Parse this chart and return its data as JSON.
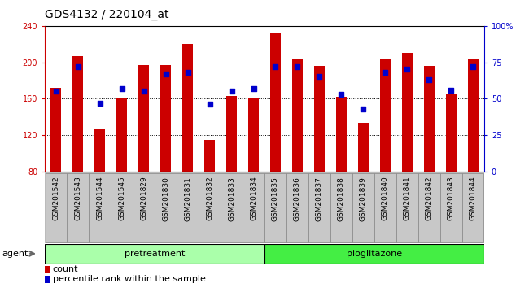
{
  "title": "GDS4132 / 220104_at",
  "samples": [
    "GSM201542",
    "GSM201543",
    "GSM201544",
    "GSM201545",
    "GSM201829",
    "GSM201830",
    "GSM201831",
    "GSM201832",
    "GSM201833",
    "GSM201834",
    "GSM201835",
    "GSM201836",
    "GSM201837",
    "GSM201838",
    "GSM201839",
    "GSM201840",
    "GSM201841",
    "GSM201842",
    "GSM201843",
    "GSM201844"
  ],
  "counts": [
    172,
    207,
    126,
    160,
    197,
    197,
    220,
    115,
    163,
    160,
    233,
    204,
    196,
    162,
    133,
    204,
    210,
    196,
    165,
    204
  ],
  "percentiles": [
    55,
    72,
    47,
    57,
    55,
    67,
    68,
    46,
    55,
    57,
    72,
    72,
    65,
    53,
    43,
    68,
    70,
    63,
    56,
    72
  ],
  "bar_color": "#cc0000",
  "dot_color": "#0000cc",
  "ylim_left": [
    80,
    240
  ],
  "ylim_right": [
    0,
    100
  ],
  "yticks_left": [
    80,
    120,
    160,
    200,
    240
  ],
  "yticks_right": [
    0,
    25,
    50,
    75,
    100
  ],
  "ytick_labels_right": [
    "0",
    "25",
    "50",
    "75",
    "100%"
  ],
  "group_pretreatment": {
    "label": "pretreatment",
    "n": 10,
    "color": "#aaffaa"
  },
  "group_pioglitazone": {
    "label": "pioglitazone",
    "n": 10,
    "color": "#44ee44"
  },
  "agent_label": "agent",
  "legend_count_label": "count",
  "legend_pct_label": "percentile rank within the sample",
  "bar_width": 0.5,
  "xtick_bg": "#bbbbbb",
  "plot_bg": "#ffffff",
  "title_fontsize": 10,
  "tick_fontsize": 7,
  "sample_fontsize": 6.5,
  "axis_label_color_left": "#cc0000",
  "axis_label_color_right": "#0000cc",
  "grid_yticks": [
    120,
    160,
    200
  ],
  "n_samples": 20,
  "pre_n": 10
}
